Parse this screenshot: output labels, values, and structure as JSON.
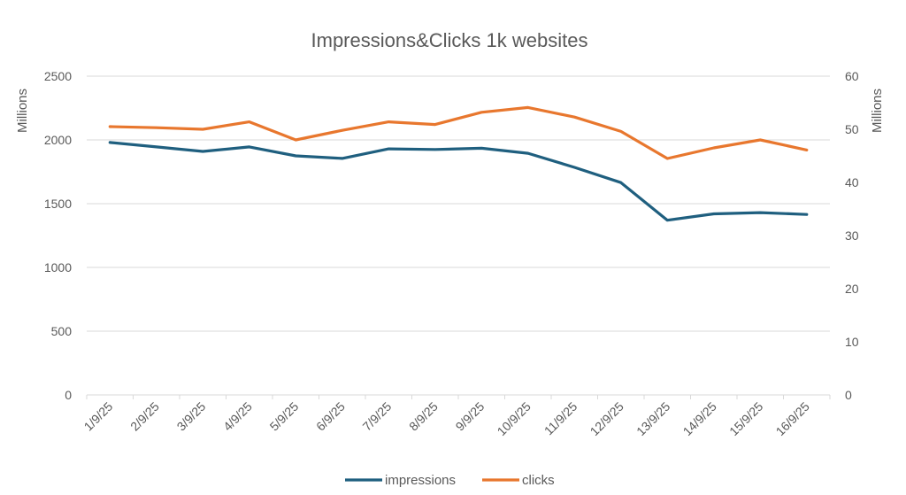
{
  "chart_data": {
    "type": "line",
    "title": "Impressions&Clicks 1k websites",
    "categories": [
      "1/9/25",
      "2/9/25",
      "3/9/25",
      "4/9/25",
      "5/9/25",
      "6/9/25",
      "7/9/25",
      "8/9/25",
      "9/9/25",
      "10/9/25",
      "11/9/25",
      "12/9/25",
      "13/9/25",
      "14/9/25",
      "15/9/25",
      "16/9/25"
    ],
    "y_left": {
      "label": "Millions",
      "ylim": [
        0,
        2500
      ],
      "ticks": [
        0,
        500,
        1000,
        1500,
        2000,
        2500
      ]
    },
    "y_right": {
      "label": "Millions",
      "ylim": [
        0,
        60
      ],
      "ticks": [
        0,
        10,
        20,
        30,
        40,
        50,
        60
      ]
    },
    "grid": true,
    "legend": "bottom",
    "series": [
      {
        "name": "impressions",
        "axis": "left",
        "color": "#1f5f7f",
        "values": [
          1980,
          1945,
          1910,
          1945,
          1875,
          1855,
          1930,
          1925,
          1935,
          1895,
          1785,
          1665,
          1370,
          1420,
          1430,
          1415
        ]
      },
      {
        "name": "clicks",
        "axis": "right",
        "color": "#e8772e",
        "values": [
          50.5,
          50.3,
          50.0,
          51.4,
          48.0,
          49.8,
          51.4,
          50.9,
          53.2,
          54.1,
          52.3,
          49.6,
          44.5,
          46.5,
          48.0,
          46.1
        ]
      }
    ]
  }
}
